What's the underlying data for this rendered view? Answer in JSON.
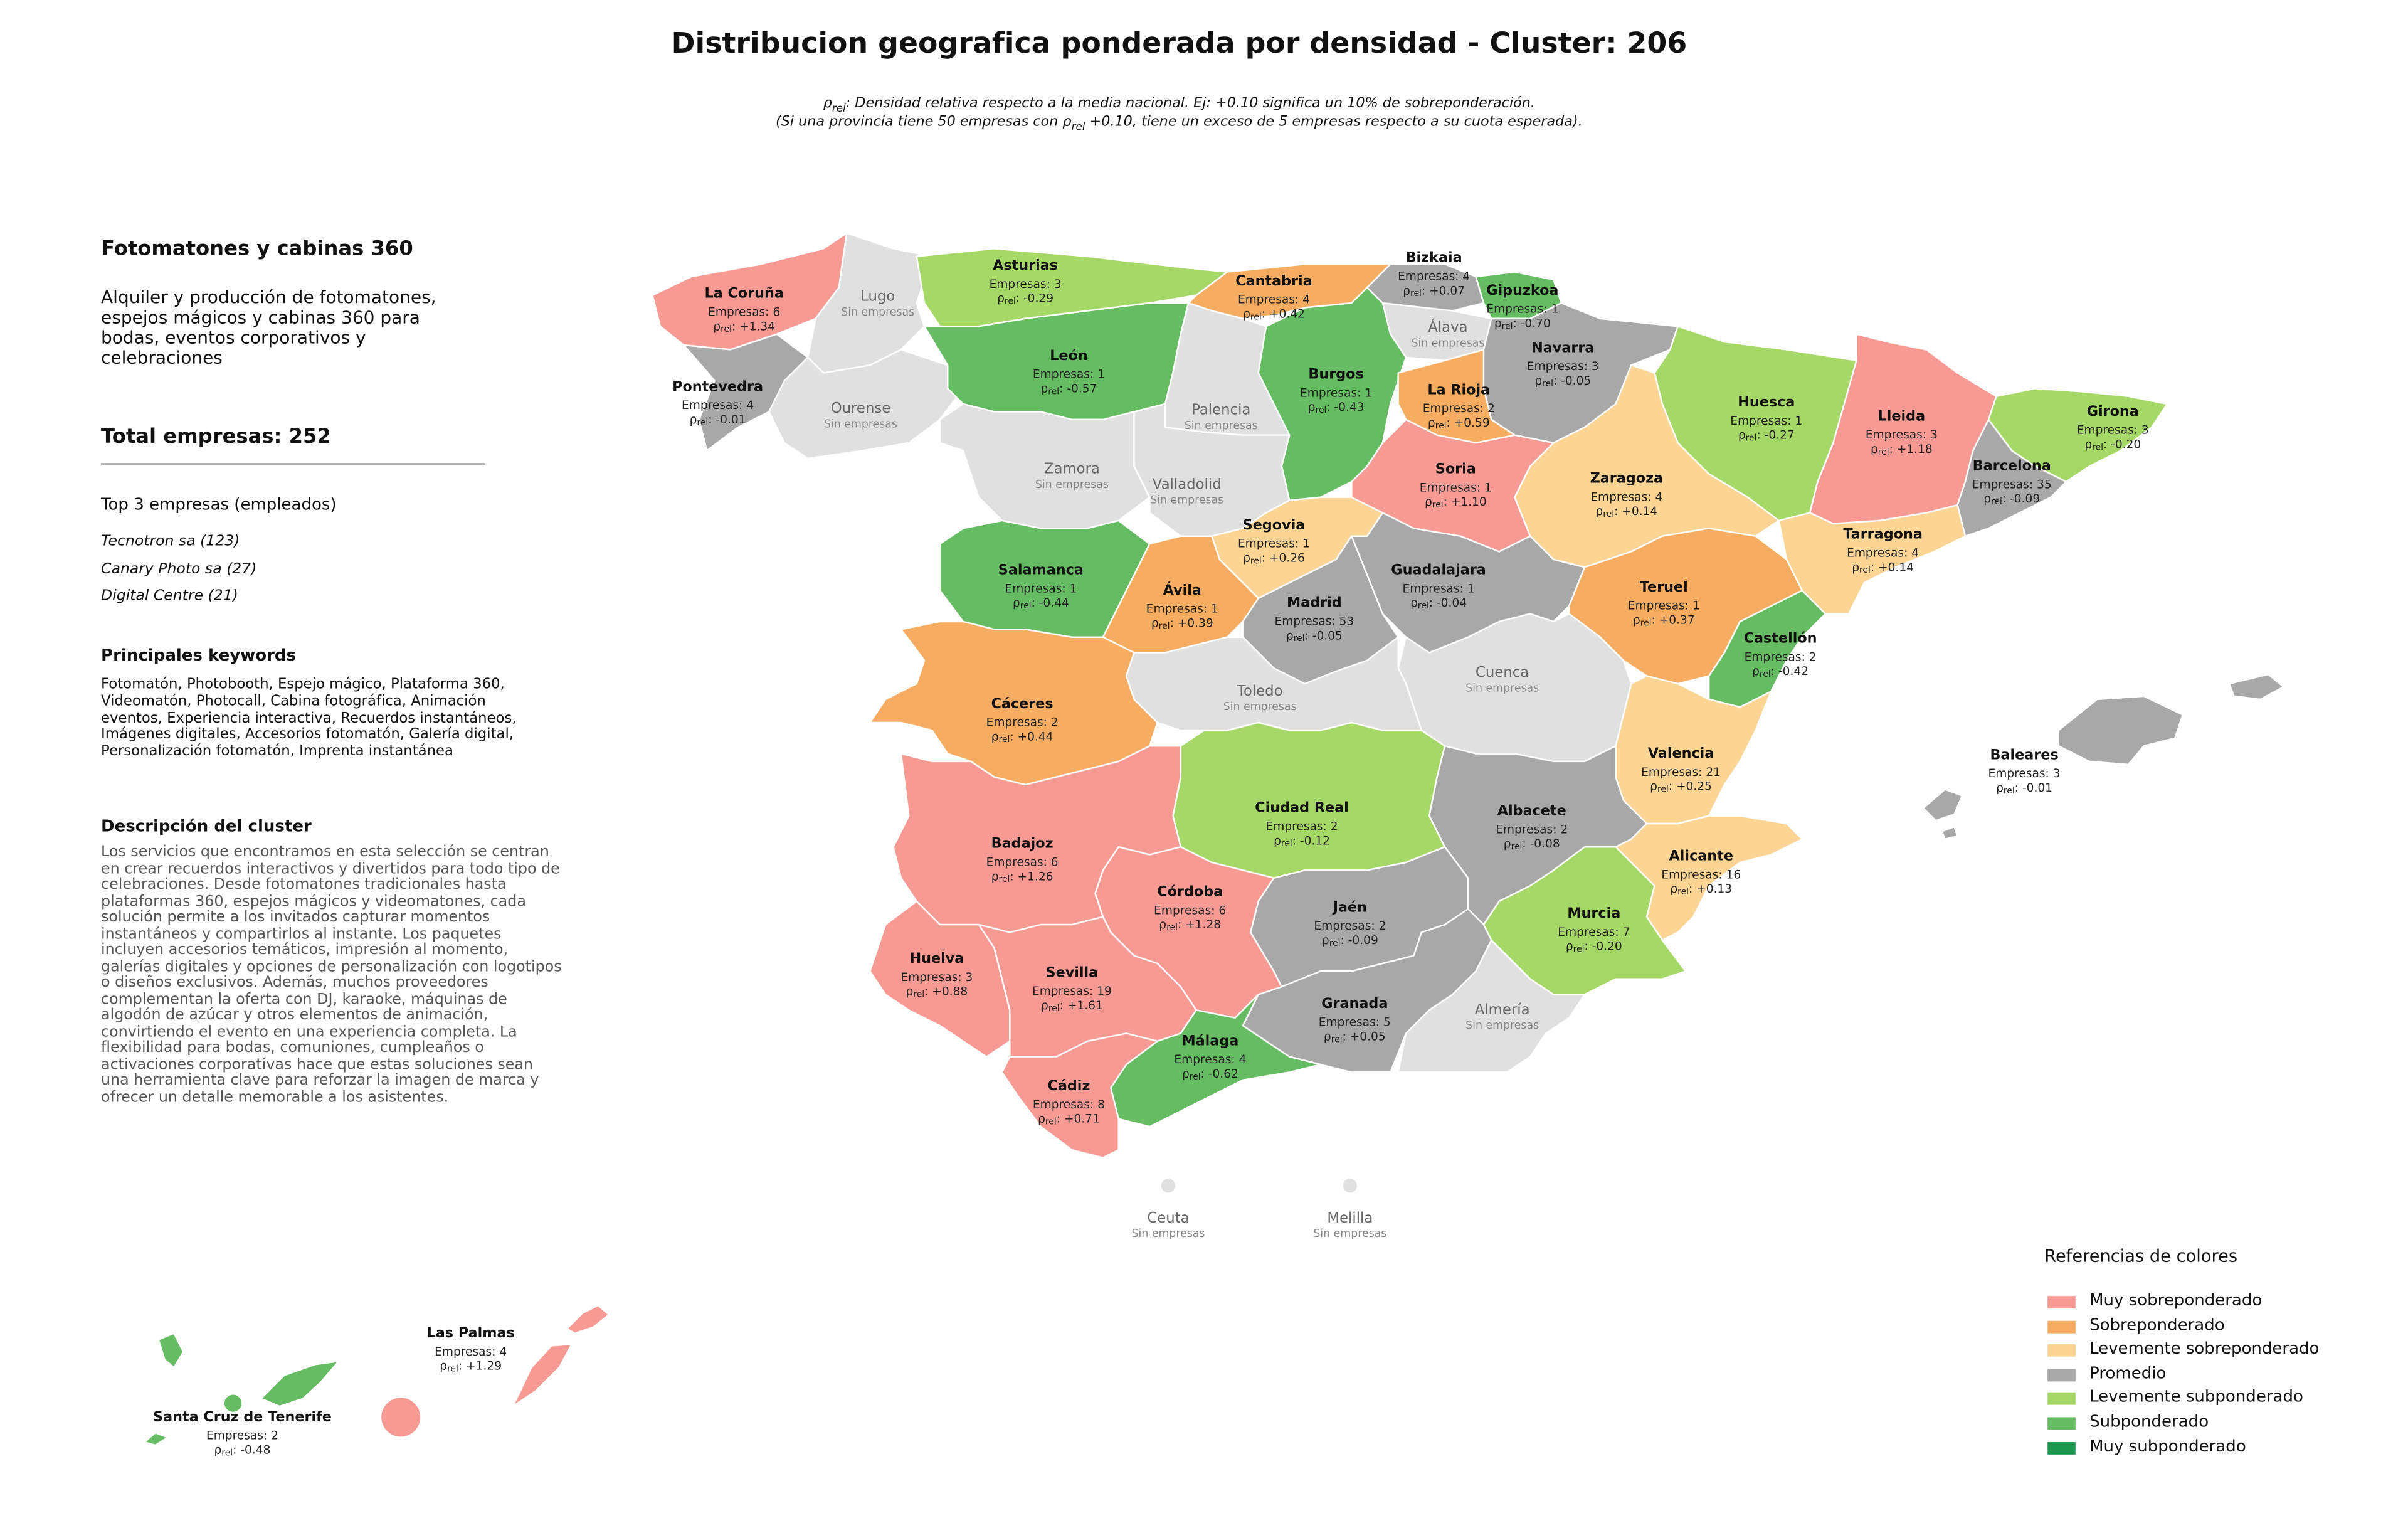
{
  "title": "Distribucion geografica ponderada por densidad - Cluster: 206",
  "notes": [
    "ρrel: Densidad relativa respecto a la media nacional. Ej: +0.10 significa un 10% de sobreponderación.",
    "(Si una provincia tiene 50 empresas con ρrel +0.10, tiene un exceso de 5 empresas respecto a su cuota esperada)."
  ],
  "sidebar": {
    "title": "Fotomatones y cabinas 360",
    "description": "Alquiler y producción de fotomatones, espejos mágicos y cabinas 360 para bodas, eventos corporativos y celebraciones",
    "total": "Total empresas: 252",
    "top_title": "Top 3 empresas (empleados)",
    "top": [
      "Tecnotron sa (123)",
      "Canary Photo sa (27)",
      "Digital Centre (21)"
    ],
    "keywords_title": "Principales keywords",
    "keywords": "Fotomatón, Photobooth, Espejo mágico, Plataforma 360, Videomatón, Photocall, Cabina fotográfica, Animación eventos, Experiencia interactiva, Recuerdos instantáneos, Imágenes digitales, Accesorios fotomatón, Galería digital, Personalización fotomatón, Imprenta instantánea",
    "cluster_title": "Descripción del cluster",
    "cluster_description": "Los servicios que encontramos en esta selección se centran en crear recuerdos interactivos y divertidos para todo tipo de celebraciones. Desde fotomatones tradicionales hasta plataformas 360, espejos mágicos y videomatones, cada solución permite a los invitados capturar momentos instantáneos y compartirlos al instante. Los paquetes incluyen accesorios temáticos, impresión al momento, galerías digitales y opciones de personalización con logotipos o diseños exclusivos. Además, muchos proveedores complementan la oferta con DJ, karaoke, máquinas de algodón de azúcar y otros elementos de animación, convirtiendo el evento en una experiencia completa. La flexibilidad para bodas, comuniones, cumpleaños o activaciones corporativas hace que estas soluciones sean una herramienta clave para reforzar la imagen de marca y ofrecer un detalle memorable a los asistentes."
  },
  "legend": {
    "title": "Referencias de colores",
    "items": [
      {
        "label": "Muy sobreponderado",
        "color": "#f89a94"
      },
      {
        "label": "Sobreponderado",
        "color": "#f6ad62"
      },
      {
        "label": "Levemente sobreponderado",
        "color": "#fcd494"
      },
      {
        "label": "Promedio",
        "color": "#a8a8a8"
      },
      {
        "label": "Levemente subponderado",
        "color": "#a6d868"
      },
      {
        "label": "Subponderado",
        "color": "#66bc62"
      },
      {
        "label": "Muy subponderado",
        "color": "#1a9850"
      }
    ]
  },
  "provinces": [
    {
      "name": "La Coruña",
      "empresas": "Empresas: 6",
      "rho": "ρrel: +1.34",
      "color": "#f89a94"
    },
    {
      "name": "Lugo",
      "empresas": "Sin empresas",
      "color": "#e0e0e0"
    },
    {
      "name": "Asturias",
      "empresas": "Empresas: 3",
      "rho": "ρrel: -0.29",
      "color": "#a6d868"
    },
    {
      "name": "Cantabria",
      "empresas": "Empresas: 4",
      "rho": "ρrel: +0.42",
      "color": "#f6ad62"
    },
    {
      "name": "Bizkaia",
      "empresas": "Empresas: 4",
      "rho": "ρrel: +0.07",
      "color": "#a8a8a8"
    },
    {
      "name": "Gipuzkoa",
      "empresas": "Empresas: 1",
      "rho": "ρrel: -0.70",
      "color": "#66bc62"
    },
    {
      "name": "Álava",
      "empresas": "Sin empresas",
      "color": "#e0e0e0"
    },
    {
      "name": "Navarra",
      "empresas": "Empresas: 3",
      "rho": "ρrel: -0.05",
      "color": "#a8a8a8"
    },
    {
      "name": "Pontevedra",
      "empresas": "Empresas: 4",
      "rho": "ρrel: -0.01",
      "color": "#a8a8a8"
    },
    {
      "name": "Ourense",
      "empresas": "Sin empresas",
      "color": "#e0e0e0"
    },
    {
      "name": "León",
      "empresas": "Empresas: 1",
      "rho": "ρrel: -0.57",
      "color": "#66bc62"
    },
    {
      "name": "Palencia",
      "empresas": "Sin empresas",
      "color": "#e0e0e0"
    },
    {
      "name": "Burgos",
      "empresas": "Empresas: 1",
      "rho": "ρrel: -0.43",
      "color": "#66bc62"
    },
    {
      "name": "La Rioja",
      "empresas": "Empresas: 2",
      "rho": "ρrel: +0.59",
      "color": "#f6ad62"
    },
    {
      "name": "Huesca",
      "empresas": "Empresas: 1",
      "rho": "ρrel: -0.27",
      "color": "#a6d868"
    },
    {
      "name": "Lleida",
      "empresas": "Empresas: 3",
      "rho": "ρrel: +1.18",
      "color": "#f89a94"
    },
    {
      "name": "Girona",
      "empresas": "Empresas: 3",
      "rho": "ρrel: -0.20",
      "color": "#a6d868"
    },
    {
      "name": "Barcelona",
      "empresas": "Empresas: 35",
      "rho": "ρrel: -0.09",
      "color": "#a8a8a8"
    },
    {
      "name": "Zamora",
      "empresas": "Sin empresas",
      "color": "#e0e0e0"
    },
    {
      "name": "Valladolid",
      "empresas": "Sin empresas",
      "color": "#e0e0e0"
    },
    {
      "name": "Soria",
      "empresas": "Empresas: 1",
      "rho": "ρrel: +1.10",
      "color": "#f89a94"
    },
    {
      "name": "Zaragoza",
      "empresas": "Empresas: 4",
      "rho": "ρrel: +0.14",
      "color": "#fcd494"
    },
    {
      "name": "Segovia",
      "empresas": "Empresas: 1",
      "rho": "ρrel: +0.26",
      "color": "#fcd494"
    },
    {
      "name": "Tarragona",
      "empresas": "Empresas: 4",
      "rho": "ρrel: +0.14",
      "color": "#fcd494"
    },
    {
      "name": "Salamanca",
      "empresas": "Empresas: 1",
      "rho": "ρrel: -0.44",
      "color": "#66bc62"
    },
    {
      "name": "Guadalajara",
      "empresas": "Empresas: 1",
      "rho": "ρrel: -0.04",
      "color": "#a8a8a8"
    },
    {
      "name": "Ávila",
      "empresas": "Empresas: 1",
      "rho": "ρrel: +0.39",
      "color": "#f6ad62"
    },
    {
      "name": "Madrid",
      "empresas": "Empresas: 53",
      "rho": "ρrel: -0.05",
      "color": "#a8a8a8"
    },
    {
      "name": "Teruel",
      "empresas": "Empresas: 1",
      "rho": "ρrel: +0.37",
      "color": "#f6ad62"
    },
    {
      "name": "Castellón",
      "empresas": "Empresas: 2",
      "rho": "ρrel: -0.42",
      "color": "#66bc62"
    },
    {
      "name": "Cuenca",
      "empresas": "Sin empresas",
      "color": "#e0e0e0"
    },
    {
      "name": "Toledo",
      "empresas": "Sin empresas",
      "color": "#e0e0e0"
    },
    {
      "name": "Cáceres",
      "empresas": "Empresas: 2",
      "rho": "ρrel: +0.44",
      "color": "#f6ad62"
    },
    {
      "name": "Valencia",
      "empresas": "Empresas: 21",
      "rho": "ρrel: +0.25",
      "color": "#fcd494"
    },
    {
      "name": "Baleares",
      "empresas": "Empresas: 3",
      "rho": "ρrel: -0.01",
      "color": "#a8a8a8"
    },
    {
      "name": "Ciudad Real",
      "empresas": "Empresas: 2",
      "rho": "ρrel: -0.12",
      "color": "#a6d868"
    },
    {
      "name": "Albacete",
      "empresas": "Empresas: 2",
      "rho": "ρrel: -0.08",
      "color": "#a8a8a8"
    },
    {
      "name": "Badajoz",
      "empresas": "Empresas: 6",
      "rho": "ρrel: +1.26",
      "color": "#f89a94"
    },
    {
      "name": "Alicante",
      "empresas": "Empresas: 16",
      "rho": "ρrel: +0.13",
      "color": "#fcd494"
    },
    {
      "name": "Córdoba",
      "empresas": "Empresas: 6",
      "rho": "ρrel: +1.28",
      "color": "#f89a94"
    },
    {
      "name": "Jaén",
      "empresas": "Empresas: 2",
      "rho": "ρrel: -0.09",
      "color": "#a8a8a8"
    },
    {
      "name": "Murcia",
      "empresas": "Empresas: 7",
      "rho": "ρrel: -0.20",
      "color": "#a6d868"
    },
    {
      "name": "Huelva",
      "empresas": "Empresas: 3",
      "rho": "ρrel: +0.88",
      "color": "#f89a94"
    },
    {
      "name": "Sevilla",
      "empresas": "Empresas: 19",
      "rho": "ρrel: +1.61",
      "color": "#f89a94"
    },
    {
      "name": "Granada",
      "empresas": "Empresas: 5",
      "rho": "ρrel: +0.05",
      "color": "#a8a8a8"
    },
    {
      "name": "Almería",
      "empresas": "Sin empresas",
      "color": "#e0e0e0"
    },
    {
      "name": "Málaga",
      "empresas": "Empresas: 4",
      "rho": "ρrel: -0.62",
      "color": "#66bc62"
    },
    {
      "name": "Cádiz",
      "empresas": "Empresas: 8",
      "rho": "ρrel: +0.71",
      "color": "#f89a94"
    },
    {
      "name": "Ceuta",
      "empresas": "Sin empresas",
      "color": "#e0e0e0"
    },
    {
      "name": "Melilla",
      "empresas": "Sin empresas",
      "color": "#e0e0e0"
    },
    {
      "name": "Las Palmas",
      "empresas": "Empresas: 4",
      "rho": "ρrel: +1.29",
      "color": "#f89a94"
    },
    {
      "name": "Santa Cruz de Tenerife",
      "empresas": "Empresas: 2",
      "rho": "ρrel: -0.48",
      "color": "#66bc62"
    }
  ]
}
